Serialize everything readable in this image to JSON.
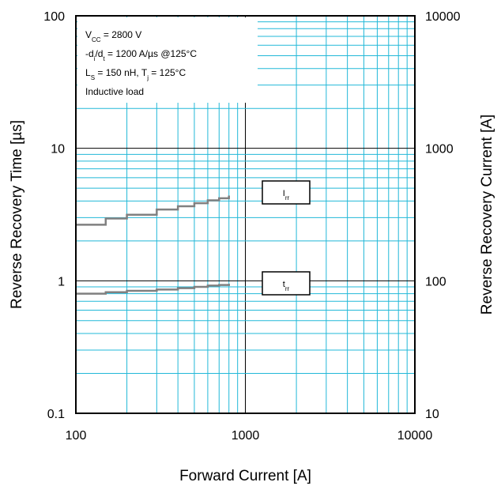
{
  "chart_data": {
    "type": "line",
    "xlabel": "Forward Current [A]",
    "ylabel": "Reverse Recovery Time [µs]",
    "y2label": "Reverse Recovery Current [A]",
    "x_scale": "log",
    "y_scale": "log",
    "y2_scale": "log",
    "xlim": [
      100,
      10000
    ],
    "ylim": [
      0.1,
      100
    ],
    "y2lim": [
      10,
      10000
    ],
    "grid": true,
    "grid_color": "#22b8d8",
    "x_ticks": [
      "100",
      "1000",
      "10000"
    ],
    "y_ticks": [
      "0.1",
      "1",
      "10",
      "100"
    ],
    "y2_ticks": [
      "10",
      "100",
      "1000",
      "10000"
    ],
    "conditions": [
      {
        "main": "V",
        "sub": "CC",
        "rest": " = 2800 V"
      },
      {
        "main": "-d",
        "sub": "i",
        "rest": "/d",
        "sub2": "t",
        "rest2": " = 1200 A/µs @125°C"
      },
      {
        "main": "L",
        "sub": "S",
        "rest": " = 150 nH, T",
        "sub2": "j",
        "rest2": " = 125°C"
      },
      {
        "main": "Inductive load",
        "sub": "",
        "rest": ""
      }
    ],
    "series": [
      {
        "name_main": "I",
        "name_sub": "rr",
        "axis": "right",
        "color": "#808080",
        "x": [
          100,
          150,
          200,
          300,
          400,
          500,
          600,
          700,
          800
        ],
        "values": [
          265,
          295,
          315,
          345,
          365,
          385,
          405,
          420,
          440
        ]
      },
      {
        "name_main": "t",
        "name_sub": "rr",
        "axis": "left",
        "color": "#808080",
        "x": [
          100,
          150,
          200,
          300,
          400,
          500,
          600,
          700,
          800
        ],
        "values": [
          0.8,
          0.82,
          0.84,
          0.86,
          0.88,
          0.9,
          0.92,
          0.93,
          0.95
        ]
      }
    ]
  }
}
